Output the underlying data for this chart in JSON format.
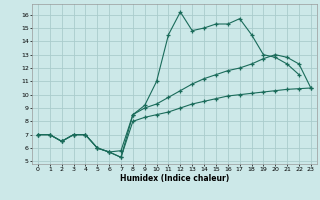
{
  "background_color": "#cce8e8",
  "grid_color": "#aacccc",
  "line_color": "#1a6b5a",
  "xlabel": "Humidex (Indice chaleur)",
  "xlim": [
    -0.5,
    23.5
  ],
  "ylim": [
    4.8,
    16.8
  ],
  "yticks": [
    5,
    6,
    7,
    8,
    9,
    10,
    11,
    12,
    13,
    14,
    15,
    16
  ],
  "xticks": [
    0,
    1,
    2,
    3,
    4,
    5,
    6,
    7,
    8,
    9,
    10,
    11,
    12,
    13,
    14,
    15,
    16,
    17,
    18,
    19,
    20,
    21,
    22,
    23
  ],
  "curve_jagged_x": [
    0,
    1,
    2,
    3,
    4,
    5,
    6,
    7,
    8,
    9,
    10,
    11,
    12,
    13,
    14,
    15,
    16,
    17,
    18,
    19,
    20,
    21,
    22
  ],
  "curve_jagged_y": [
    7.0,
    7.0,
    6.5,
    7.0,
    7.0,
    6.0,
    5.7,
    5.3,
    8.5,
    9.2,
    11.0,
    14.5,
    16.2,
    14.8,
    15.0,
    15.3,
    15.3,
    15.7,
    14.5,
    13.0,
    12.8,
    12.3,
    11.5
  ],
  "curve_mid_x": [
    0,
    1,
    2,
    3,
    4,
    5,
    6,
    7,
    8,
    9,
    10,
    11,
    12,
    13,
    14,
    15,
    16,
    17,
    18,
    19,
    20,
    21,
    22,
    23
  ],
  "curve_mid_y": [
    7.0,
    7.0,
    6.5,
    7.0,
    7.0,
    6.0,
    5.7,
    5.8,
    8.5,
    9.0,
    9.3,
    9.8,
    10.3,
    10.8,
    11.2,
    11.5,
    11.8,
    12.0,
    12.3,
    12.7,
    13.0,
    12.8,
    12.3,
    10.5
  ],
  "curve_diag_x": [
    0,
    1,
    2,
    3,
    4,
    5,
    6,
    7,
    8,
    9,
    10,
    11,
    12,
    13,
    14,
    15,
    16,
    17,
    18,
    19,
    20,
    21,
    22,
    23
  ],
  "curve_diag_y": [
    7.0,
    7.0,
    6.5,
    7.0,
    7.0,
    6.0,
    5.7,
    5.3,
    8.0,
    8.3,
    8.5,
    8.7,
    9.0,
    9.3,
    9.5,
    9.7,
    9.9,
    10.0,
    10.1,
    10.2,
    10.3,
    10.4,
    10.45,
    10.5
  ]
}
